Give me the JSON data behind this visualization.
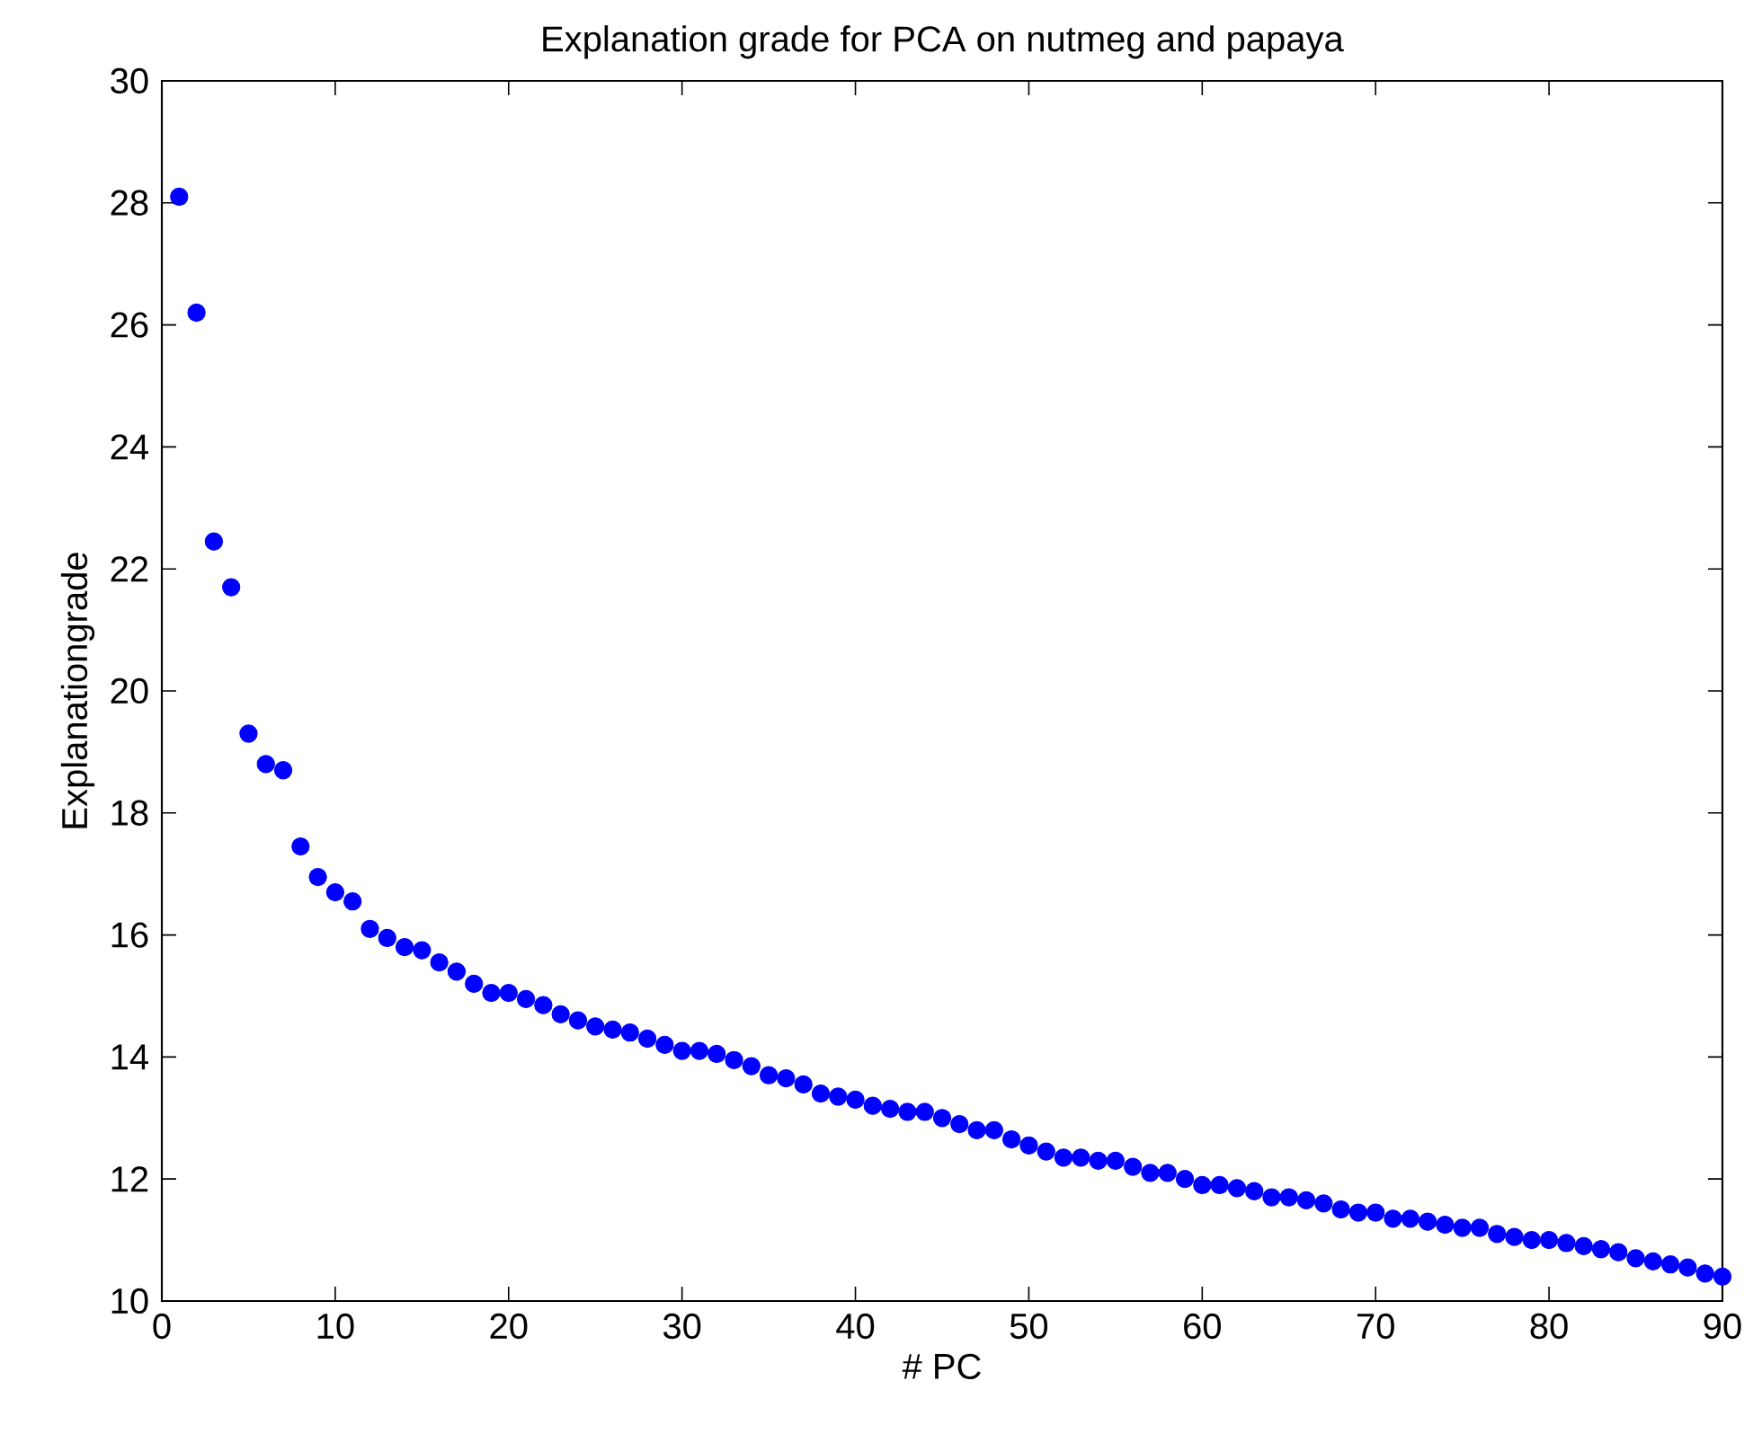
{
  "chart_data": {
    "type": "scatter",
    "title": "Explanation grade for PCA on nutmeg and papaya",
    "xlabel": "# PC",
    "ylabel": "Explanationgrade",
    "x": [
      1,
      2,
      3,
      4,
      5,
      6,
      7,
      8,
      9,
      10,
      11,
      12,
      13,
      14,
      15,
      16,
      17,
      18,
      19,
      20,
      21,
      22,
      23,
      24,
      25,
      26,
      27,
      28,
      29,
      30,
      31,
      32,
      33,
      34,
      35,
      36,
      37,
      38,
      39,
      40,
      41,
      42,
      43,
      44,
      45,
      46,
      47,
      48,
      49,
      50,
      51,
      52,
      53,
      54,
      55,
      56,
      57,
      58,
      59,
      60,
      61,
      62,
      63,
      64,
      65,
      66,
      67,
      68,
      69,
      70,
      71,
      72,
      73,
      74,
      75,
      76,
      77,
      78,
      79,
      80,
      81,
      82,
      83,
      84,
      85,
      86,
      87,
      88,
      89,
      90
    ],
    "series": [
      {
        "color": "#0000ff",
        "values": [
          28.1,
          26.2,
          22.45,
          21.7,
          19.3,
          18.8,
          18.7,
          17.45,
          16.95,
          16.7,
          16.55,
          16.1,
          15.95,
          15.8,
          15.75,
          15.55,
          15.4,
          15.2,
          15.05,
          15.05,
          14.95,
          14.85,
          14.7,
          14.6,
          14.5,
          14.45,
          14.4,
          14.3,
          14.2,
          14.1,
          14.1,
          14.05,
          13.95,
          13.85,
          13.7,
          13.65,
          13.55,
          13.4,
          13.35,
          13.3,
          13.2,
          13.15,
          13.1,
          13.1,
          13.0,
          12.9,
          12.8,
          12.8,
          12.65,
          12.55,
          12.45,
          12.35,
          12.35,
          12.3,
          12.3,
          12.2,
          12.1,
          12.1,
          12.0,
          11.9,
          11.9,
          11.85,
          11.8,
          11.7,
          11.7,
          11.65,
          11.6,
          11.5,
          11.45,
          11.45,
          11.35,
          11.35,
          11.3,
          11.25,
          11.2,
          11.2,
          11.1,
          11.05,
          11.0,
          11.0,
          10.95,
          10.9,
          10.85,
          10.8,
          10.7,
          10.65,
          10.6,
          10.55,
          10.45,
          10.4
        ]
      }
    ],
    "xlim": [
      0,
      90
    ],
    "xticks": [
      0,
      10,
      20,
      30,
      40,
      50,
      60,
      70,
      80,
      90
    ],
    "ylim": [
      10,
      30
    ],
    "yticks": [
      10,
      12,
      14,
      16,
      18,
      20,
      22,
      24,
      26,
      28,
      30
    ],
    "marker": "circle",
    "grid": false
  }
}
